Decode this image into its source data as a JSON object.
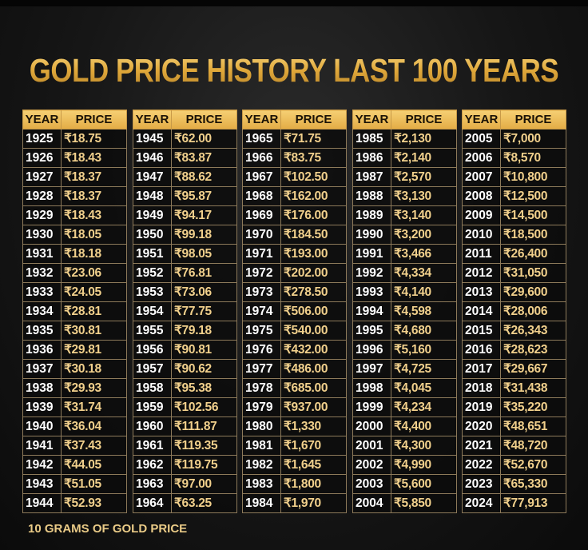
{
  "title": "GOLD PRICE HISTORY LAST 100 YEARS",
  "footer": "10 GRAMS OF GOLD PRICE",
  "headers": {
    "year": "YEAR",
    "price": "PRICE"
  },
  "tables": [
    {
      "rows": [
        [
          "1925",
          "₹18.75"
        ],
        [
          "1926",
          "₹18.43"
        ],
        [
          "1927",
          "₹18.37"
        ],
        [
          "1928",
          "₹18.37"
        ],
        [
          "1929",
          "₹18.43"
        ],
        [
          "1930",
          "₹18.05"
        ],
        [
          "1931",
          "₹18.18"
        ],
        [
          "1932",
          "₹23.06"
        ],
        [
          "1933",
          "₹24.05"
        ],
        [
          "1934",
          "₹28.81"
        ],
        [
          "1935",
          "₹30.81"
        ],
        [
          "1936",
          "₹29.81"
        ],
        [
          "1937",
          "₹30.18"
        ],
        [
          "1938",
          "₹29.93"
        ],
        [
          "1939",
          "₹31.74"
        ],
        [
          "1940",
          "₹36.04"
        ],
        [
          "1941",
          "₹37.43"
        ],
        [
          "1942",
          "₹44.05"
        ],
        [
          "1943",
          "₹51.05"
        ],
        [
          "1944",
          "₹52.93"
        ]
      ]
    },
    {
      "rows": [
        [
          "1945",
          "₹62.00"
        ],
        [
          "1946",
          "₹83.87"
        ],
        [
          "1947",
          "₹88.62"
        ],
        [
          "1948",
          "₹95.87"
        ],
        [
          "1949",
          "₹94.17"
        ],
        [
          "1950",
          "₹99.18"
        ],
        [
          "1951",
          "₹98.05"
        ],
        [
          "1952",
          "₹76.81"
        ],
        [
          "1953",
          "₹73.06"
        ],
        [
          "1954",
          "₹77.75"
        ],
        [
          "1955",
          "₹79.18"
        ],
        [
          "1956",
          "₹90.81"
        ],
        [
          "1957",
          "₹90.62"
        ],
        [
          "1958",
          "₹95.38"
        ],
        [
          "1959",
          "₹102.56"
        ],
        [
          "1960",
          "₹111.87"
        ],
        [
          "1961",
          "₹119.35"
        ],
        [
          "1962",
          "₹119.75"
        ],
        [
          "1963",
          "₹97.00"
        ],
        [
          "1964",
          "₹63.25"
        ]
      ]
    },
    {
      "rows": [
        [
          "1965",
          "₹71.75"
        ],
        [
          "1966",
          "₹83.75"
        ],
        [
          "1967",
          "₹102.50"
        ],
        [
          "1968",
          "₹162.00"
        ],
        [
          "1969",
          "₹176.00"
        ],
        [
          "1970",
          "₹184.50"
        ],
        [
          "1971",
          "₹193.00"
        ],
        [
          "1972",
          "₹202.00"
        ],
        [
          "1973",
          "₹278.50"
        ],
        [
          "1974",
          "₹506.00"
        ],
        [
          "1975",
          "₹540.00"
        ],
        [
          "1976",
          "₹432.00"
        ],
        [
          "1977",
          "₹486.00"
        ],
        [
          "1978",
          "₹685.00"
        ],
        [
          "1979",
          "₹937.00"
        ],
        [
          "1980",
          "₹1,330"
        ],
        [
          "1981",
          "₹1,670"
        ],
        [
          "1982",
          "₹1,645"
        ],
        [
          "1983",
          "₹1,800"
        ],
        [
          "1984",
          "₹1,970"
        ]
      ]
    },
    {
      "rows": [
        [
          "1985",
          "₹2,130"
        ],
        [
          "1986",
          "₹2,140"
        ],
        [
          "1987",
          "₹2,570"
        ],
        [
          "1988",
          "₹3,130"
        ],
        [
          "1989",
          "₹3,140"
        ],
        [
          "1990",
          "₹3,200"
        ],
        [
          "1991",
          "₹3,466"
        ],
        [
          "1992",
          "₹4,334"
        ],
        [
          "1993",
          "₹4,140"
        ],
        [
          "1994",
          "₹4,598"
        ],
        [
          "1995",
          "₹4,680"
        ],
        [
          "1996",
          "₹5,160"
        ],
        [
          "1997",
          "₹4,725"
        ],
        [
          "1998",
          "₹4,045"
        ],
        [
          "1999",
          "₹4,234"
        ],
        [
          "2000",
          "₹4,400"
        ],
        [
          "2001",
          "₹4,300"
        ],
        [
          "2002",
          "₹4,990"
        ],
        [
          "2003",
          "₹5,600"
        ],
        [
          "2004",
          "₹5,850"
        ]
      ]
    },
    {
      "rows": [
        [
          "2005",
          "₹7,000"
        ],
        [
          "2006",
          "₹8,570"
        ],
        [
          "2007",
          "₹10,800"
        ],
        [
          "2008",
          "₹12,500"
        ],
        [
          "2009",
          "₹14,500"
        ],
        [
          "2010",
          "₹18,500"
        ],
        [
          "2011",
          "₹26,400"
        ],
        [
          "2012",
          "₹31,050"
        ],
        [
          "2013",
          "₹29,600"
        ],
        [
          "2014",
          "₹28,006"
        ],
        [
          "2015",
          "₹26,343"
        ],
        [
          "2016",
          "₹28,623"
        ],
        [
          "2017",
          "₹29,667"
        ],
        [
          "2018",
          "₹31,438"
        ],
        [
          "2019",
          "₹35,220"
        ],
        [
          "2020",
          "₹48,651"
        ],
        [
          "2021",
          "₹48,720"
        ],
        [
          "2022",
          "₹52,670"
        ],
        [
          "2023",
          "₹65,330"
        ],
        [
          "2024",
          "₹77,913"
        ]
      ]
    }
  ]
}
